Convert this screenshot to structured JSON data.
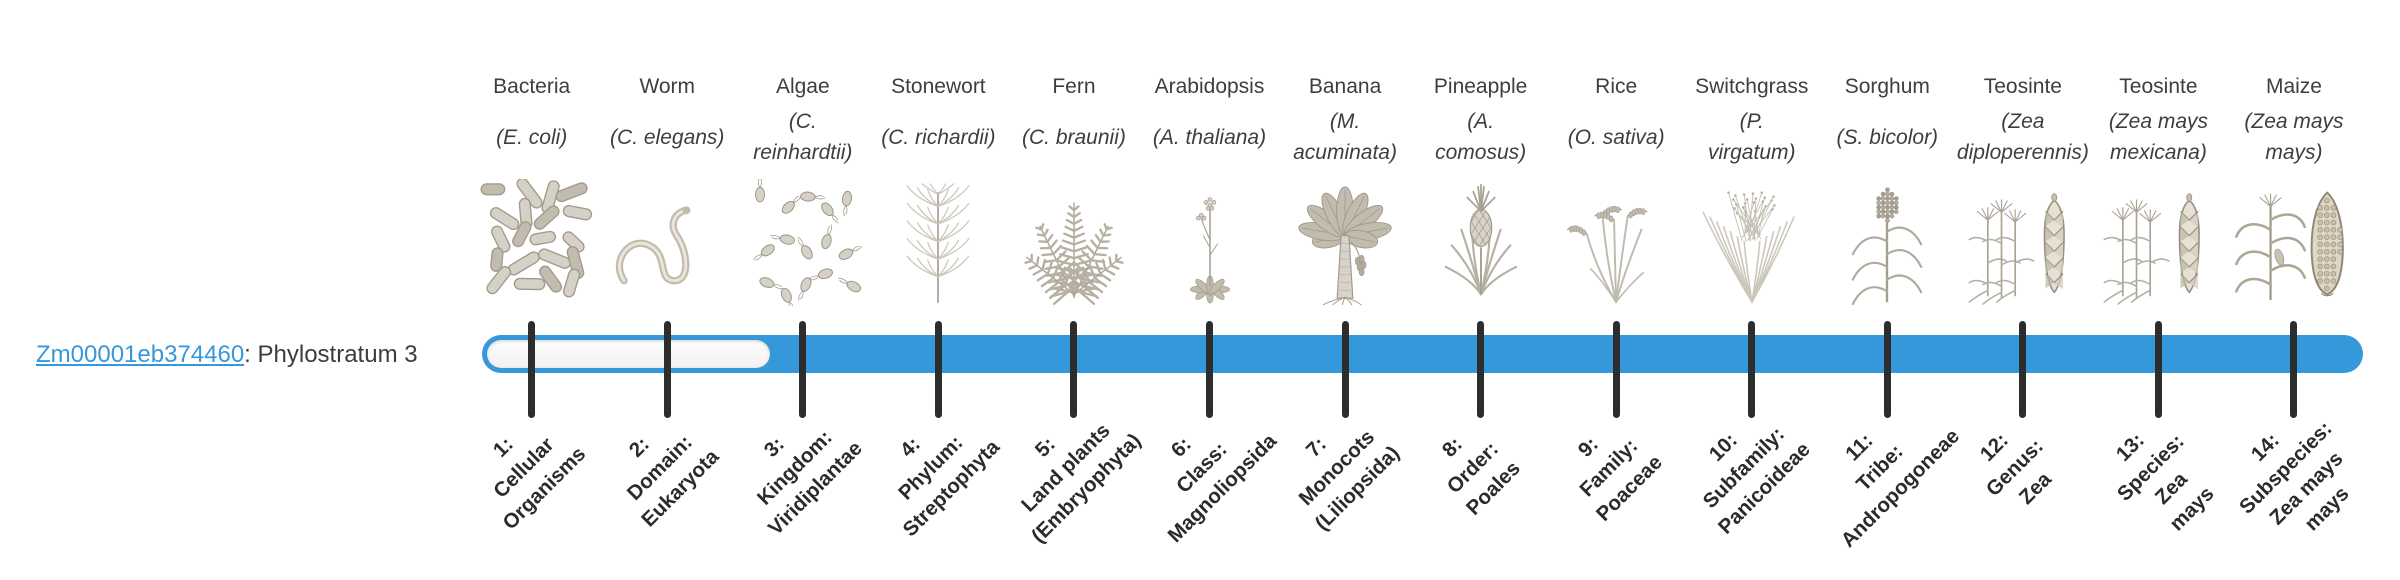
{
  "gene": {
    "id": "Zm00001eb374460",
    "suffix": ": Phylostratum 3",
    "phylostratum": 3
  },
  "timeline": {
    "bar_color": "#3598db",
    "unfilled_color": "#f7f7f7",
    "tick_color": "#2d2d2d",
    "link_color": "#3598dc",
    "filled_from_stratum": 3
  },
  "organisms": [
    {
      "common": "Bacteria",
      "scientific": "(E. coli)",
      "icon": "bacteria-icon",
      "stratum_label": "1:\nCellular\nOrganisms"
    },
    {
      "common": "Worm",
      "scientific": "(C. elegans)",
      "icon": "worm-icon",
      "stratum_label": "2:\nDomain:\nEukaryota"
    },
    {
      "common": "Algae",
      "scientific": "(C.\nreinhardtii)",
      "icon": "algae-icon",
      "stratum_label": "3:\nKingdom:\nViridiplantae"
    },
    {
      "common": "Stonewort",
      "scientific": "(C. richardii)",
      "icon": "stonewort-icon",
      "stratum_label": "4:\nPhylum:\nStreptophyta"
    },
    {
      "common": "Fern",
      "scientific": "(C. braunii)",
      "icon": "fern-icon",
      "stratum_label": "5:\nLand plants\n(Embryophyta)"
    },
    {
      "common": "Arabidopsis",
      "scientific": "(A. thaliana)",
      "icon": "arabidopsis-icon",
      "stratum_label": "6:\nClass:\nMagnoliopsida"
    },
    {
      "common": "Banana",
      "scientific": "(M.\nacuminata)",
      "icon": "banana-icon",
      "stratum_label": "7:\nMonocots\n(Liliopsida)"
    },
    {
      "common": "Pineapple",
      "scientific": "(A.\ncomosus)",
      "icon": "pineapple-icon",
      "stratum_label": "8:\nOrder:\nPoales"
    },
    {
      "common": "Rice",
      "scientific": "(O. sativa)",
      "icon": "rice-icon",
      "stratum_label": "9:\nFamily:\nPoaceae"
    },
    {
      "common": "Switchgrass",
      "scientific": "(P.\nvirgatum)",
      "icon": "switchgrass-icon",
      "stratum_label": "10:\nSubfamily:\nPanicoideae"
    },
    {
      "common": "Sorghum",
      "scientific": "(S. bicolor)",
      "icon": "sorghum-icon",
      "stratum_label": "11:\nTribe:\nAndropogoneae"
    },
    {
      "common": "Teosinte",
      "scientific": "(Zea\ndiploperennis)",
      "icon": "teosinte-icon",
      "stratum_label": "12:\nGenus:\nZea"
    },
    {
      "common": "Teosinte",
      "scientific": "(Zea mays\nmexicana)",
      "icon": "teosinte-icon",
      "stratum_label": "13:\nSpecies:\nZea\nmays"
    },
    {
      "common": "Maize",
      "scientific": "(Zea mays\nmays)",
      "icon": "maize-icon",
      "stratum_label": "14:\nSubspecies:\nZea mays\nmays"
    }
  ]
}
